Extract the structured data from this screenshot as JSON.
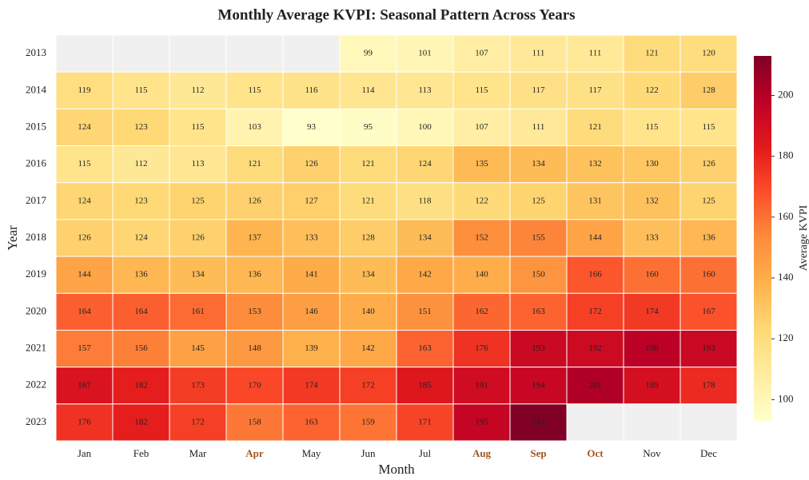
{
  "chart_data": {
    "type": "heatmap",
    "title": "Monthly Average KVPI: Seasonal Pattern Across Years",
    "x_label": "Month",
    "y_label": "Year",
    "colorbar_label": "Average KVPI",
    "categories": [
      "Jan",
      "Feb",
      "Mar",
      "Apr",
      "May",
      "Jun",
      "Jul",
      "Aug",
      "Sep",
      "Oct",
      "Nov",
      "Dec"
    ],
    "rows": [
      2013,
      2014,
      2015,
      2016,
      2017,
      2018,
      2019,
      2020,
      2021,
      2022,
      2023
    ],
    "values": [
      [
        null,
        null,
        null,
        null,
        null,
        99,
        101,
        107,
        111,
        111,
        121,
        120
      ],
      [
        119,
        115,
        112,
        115,
        116,
        114,
        113,
        115,
        117,
        117,
        122,
        128
      ],
      [
        124,
        123,
        115,
        103,
        93,
        95,
        100,
        107,
        111,
        121,
        115,
        115
      ],
      [
        115,
        112,
        113,
        121,
        126,
        121,
        124,
        135,
        134,
        132,
        130,
        126
      ],
      [
        124,
        123,
        125,
        126,
        127,
        121,
        118,
        122,
        125,
        131,
        132,
        125
      ],
      [
        126,
        124,
        126,
        137,
        133,
        128,
        134,
        152,
        155,
        144,
        133,
        136
      ],
      [
        144,
        136,
        134,
        136,
        141,
        134,
        142,
        140,
        150,
        166,
        160,
        160
      ],
      [
        164,
        164,
        161,
        153,
        146,
        140,
        151,
        162,
        163,
        172,
        174,
        167
      ],
      [
        157,
        156,
        145,
        148,
        139,
        142,
        163,
        176,
        193,
        192,
        198,
        193
      ],
      [
        187,
        182,
        173,
        170,
        174,
        172,
        185,
        191,
        194,
        201,
        189,
        178
      ],
      [
        176,
        182,
        172,
        158,
        163,
        159,
        171,
        195,
        213,
        null,
        null,
        null
      ]
    ],
    "clim": [
      93,
      213
    ],
    "cticks": [
      100,
      120,
      140,
      160,
      180,
      200
    ],
    "colormap": [
      "#ffffcc",
      "#ffeda0",
      "#fed976",
      "#feb24c",
      "#fd8d3c",
      "#fc4e2a",
      "#e31a1c",
      "#bd0026",
      "#800026"
    ],
    "missing_color": "#f0f0f0",
    "highlighted": [
      "Apr",
      "Aug",
      "Sep",
      "Oct"
    ],
    "highlight_color": "#a0561e"
  }
}
